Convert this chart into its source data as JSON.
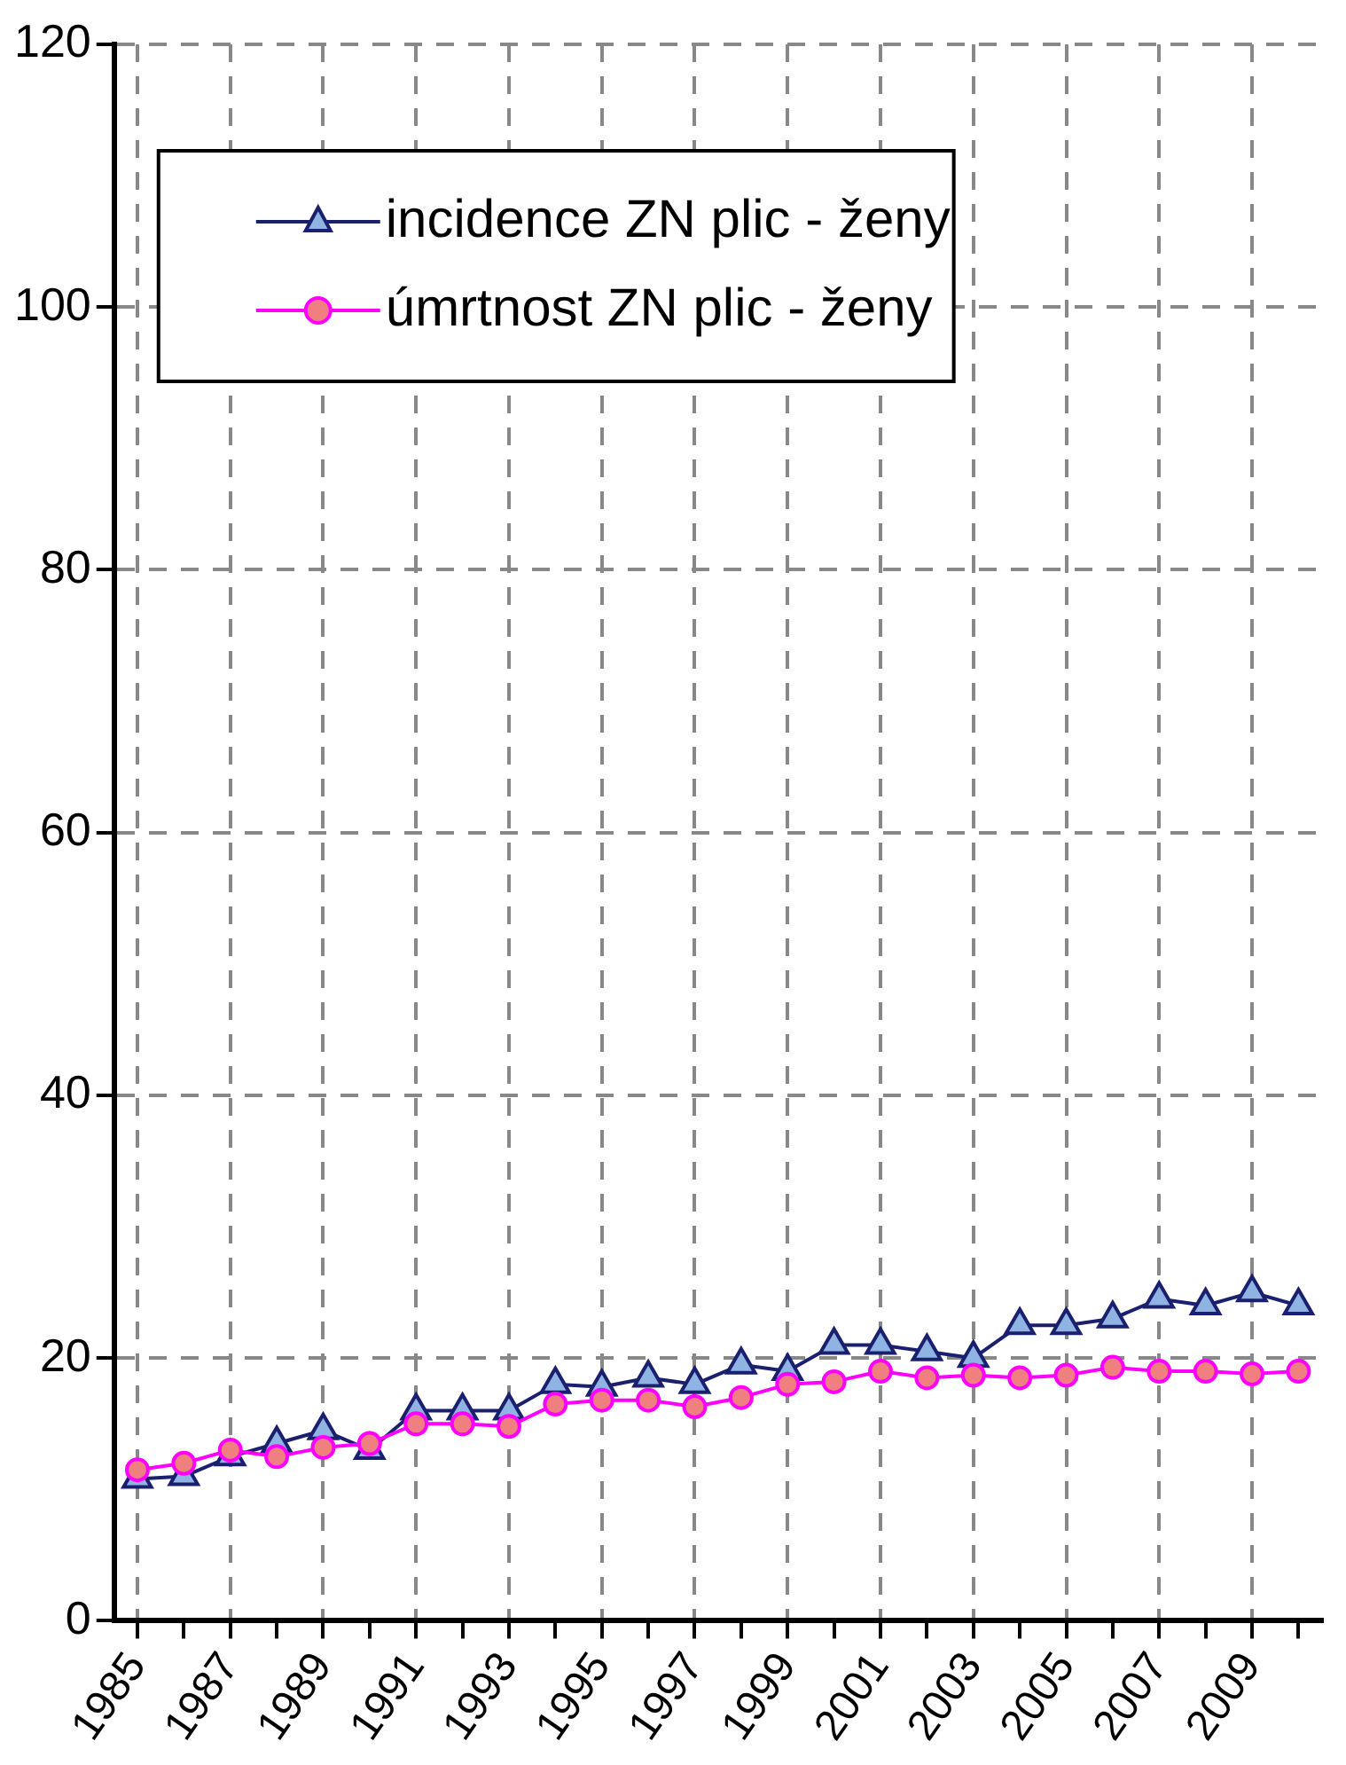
{
  "chart_data": {
    "type": "line",
    "categories": [
      "1985",
      null,
      "1987",
      null,
      "1989",
      null,
      "1991",
      null,
      "1993",
      null,
      "1995",
      null,
      "1997",
      null,
      "1999",
      null,
      "2001",
      null,
      "2003",
      null,
      "2005",
      null,
      "2007",
      null,
      "2009",
      null
    ],
    "series": [
      {
        "name": "incidence ZN plic - ženy",
        "color": "#1a1f6e",
        "marker": "triangle",
        "values": [
          10.8,
          11,
          12.5,
          13.5,
          14.5,
          13,
          16,
          16,
          16,
          18,
          17.8,
          18.5,
          18,
          19.5,
          19,
          21,
          21,
          20.5,
          20,
          22.5,
          22.5,
          23,
          24.5,
          24,
          25,
          24
        ]
      },
      {
        "name": "úmrtnost ZN plic - ženy",
        "color": "#ff00ff",
        "marker": "circle",
        "values": [
          11.5,
          12,
          13,
          12.5,
          13.2,
          13.5,
          15,
          15,
          14.8,
          16.5,
          16.8,
          16.8,
          16.3,
          17,
          18,
          18.2,
          19,
          18.5,
          18.7,
          18.5,
          18.7,
          19.3,
          19,
          19,
          18.8,
          19
        ]
      }
    ],
    "ylim": [
      0,
      120
    ],
    "yticks": [
      0,
      20,
      40,
      60,
      80,
      100,
      120
    ],
    "grid": true,
    "legend": "top left",
    "line_style": "solid"
  }
}
